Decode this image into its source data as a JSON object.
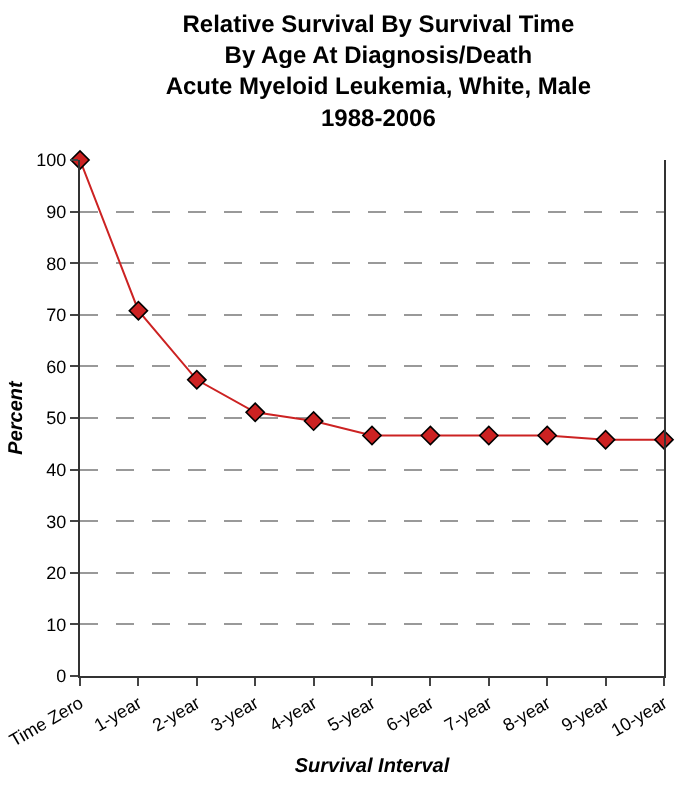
{
  "chart_data": {
    "type": "line",
    "title": "Relative Survival By Survival Time\nBy Age At Diagnosis/Death\nAcute Myeloid Leukemia, White, Male\n1988-2006",
    "xlabel": "Survival Interval",
    "ylabel": "Percent",
    "categories": [
      "Time Zero",
      "1-year",
      "2-year",
      "3-year",
      "4-year",
      "5-year",
      "6-year",
      "7-year",
      "8-year",
      "9-year",
      "10-year"
    ],
    "series": [
      {
        "color": "#cc2222",
        "values": [
          100,
          70.8,
          57.4,
          51.1,
          49.4,
          46.6,
          46.6,
          46.6,
          46.6,
          45.8,
          45.8
        ]
      }
    ],
    "ylim": [
      0,
      100
    ],
    "yticks": [
      0,
      10,
      20,
      30,
      40,
      50,
      60,
      70,
      80,
      90,
      100
    ],
    "grid": "y",
    "marker": "diamond",
    "line_style": "solid",
    "legend": false
  }
}
